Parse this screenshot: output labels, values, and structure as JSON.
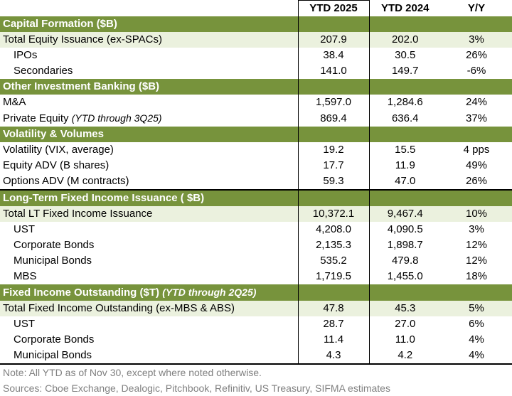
{
  "header": {
    "col1": "YTD 2025",
    "col2": "YTD 2024",
    "col3": "Y/Y"
  },
  "rows": [
    {
      "type": "section",
      "label": "Capital Formation ($B)"
    },
    {
      "type": "total",
      "label": "Total Equity Issuance (ex-SPACs)",
      "v1": "207.9",
      "v2": "202.0",
      "v3": "3%"
    },
    {
      "type": "item",
      "label": "IPOs",
      "v1": "38.4",
      "v2": "30.5",
      "v3": "26%"
    },
    {
      "type": "item",
      "label": "Secondaries",
      "v1": "141.0",
      "v2": "149.7",
      "v3": "-6%"
    },
    {
      "type": "section",
      "label": "Other Investment Banking ($B)"
    },
    {
      "type": "plain",
      "label": "M&A",
      "v1": "1,597.0",
      "v2": "1,284.6",
      "v3": "24%"
    },
    {
      "type": "plain",
      "label": "Private Equity",
      "note": "(YTD through 3Q25)",
      "v1": "869.4",
      "v2": "636.4",
      "v3": "37%"
    },
    {
      "type": "section",
      "label": "Volatility & Volumes"
    },
    {
      "type": "plain",
      "label": "Volatility (VIX, average)",
      "v1": "19.2",
      "v2": "15.5",
      "v3": "4 pps"
    },
    {
      "type": "plain",
      "label": "Equity ADV (B shares)",
      "v1": "17.7",
      "v2": "11.9",
      "v3": "49%"
    },
    {
      "type": "plain thick",
      "label": "Options ADV (M contracts)",
      "v1": "59.3",
      "v2": "47.0",
      "v3": "26%"
    },
    {
      "type": "section",
      "label": "Long-Term Fixed Income Issuance ( $B)"
    },
    {
      "type": "total",
      "label": "Total LT Fixed Income Issuance",
      "v1": "10,372.1",
      "v2": "9,467.4",
      "v3": "10%"
    },
    {
      "type": "item",
      "label": "UST",
      "v1": "4,208.0",
      "v2": "4,090.5",
      "v3": "3%"
    },
    {
      "type": "item",
      "label": "Corporate Bonds",
      "v1": "2,135.3",
      "v2": "1,898.7",
      "v3": "12%"
    },
    {
      "type": "item",
      "label": "Municipal Bonds",
      "v1": "535.2",
      "v2": "479.8",
      "v3": "12%"
    },
    {
      "type": "item",
      "label": "MBS",
      "v1": "1,719.5",
      "v2": "1,455.0",
      "v3": "18%"
    },
    {
      "type": "section",
      "label": "Fixed Income Outstanding ($T)",
      "note": "(YTD through 2Q25)"
    },
    {
      "type": "total",
      "label": "Total Fixed Income Outstanding (ex-MBS & ABS)",
      "v1": "47.8",
      "v2": "45.3",
      "v3": "5%"
    },
    {
      "type": "item",
      "label": "UST",
      "v1": "28.7",
      "v2": "27.0",
      "v3": "6%"
    },
    {
      "type": "item",
      "label": "Corporate Bonds",
      "v1": "11.4",
      "v2": "11.0",
      "v3": "4%"
    },
    {
      "type": "item last",
      "label": "Municipal Bonds",
      "v1": "4.3",
      "v2": "4.2",
      "v3": "4%"
    }
  ],
  "footer": {
    "note": "Note: All YTD as of Nov 30, except where noted otherwise.",
    "sources": "Sources: Cboe Exchange, Dealogic, Pitchbook, Refinitiv, US Treasury, SIFMA estimates"
  },
  "colors": {
    "section": "#77933C",
    "total": "#EBF1DE",
    "note_text": "#808080"
  }
}
